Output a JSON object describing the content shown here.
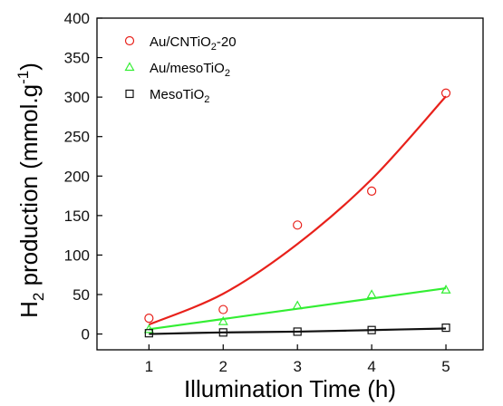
{
  "chart_data": {
    "type": "scatter",
    "xlabel": "Illumination Time (h)",
    "ylabel": "H2 production (mmol.g-1)",
    "xlim": [
      0.3,
      5.5
    ],
    "ylim": [
      -20,
      400
    ],
    "xticks": [
      1,
      2,
      3,
      4,
      5
    ],
    "yticks": [
      0,
      50,
      100,
      150,
      200,
      250,
      300,
      350,
      400
    ],
    "grid": false,
    "legend_position": "top-left",
    "x": [
      1,
      2,
      3,
      4,
      5
    ],
    "series": [
      {
        "name": "Au/CNTiO2-20",
        "marker": "circle",
        "color": "#e8211b",
        "values": [
          20,
          31,
          138,
          181,
          305
        ],
        "fit": [
          12,
          51,
          114,
          196,
          301
        ]
      },
      {
        "name": "Au/mesoTiO2",
        "marker": "triangle",
        "color": "#33ee33",
        "values": [
          6,
          16,
          36,
          50,
          56
        ],
        "fit": [
          6,
          19,
          32,
          45,
          58
        ]
      },
      {
        "name": "MesoTiO2",
        "marker": "square",
        "color": "#111111",
        "values": [
          1,
          2,
          3,
          5,
          8
        ],
        "fit": [
          0,
          2,
          3,
          5,
          7
        ]
      }
    ]
  }
}
